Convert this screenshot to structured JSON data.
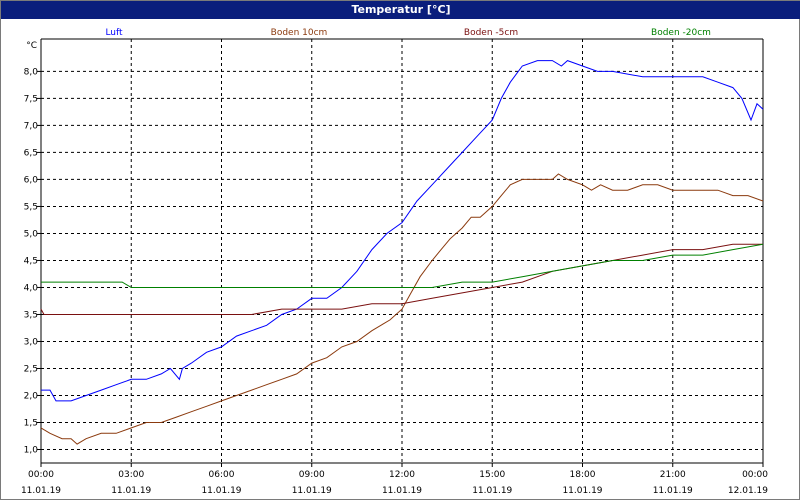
{
  "window": {
    "title": "Temperatur [°C]"
  },
  "chart_data": {
    "type": "line",
    "title": "Temperatur [°C]",
    "ylabel": "°C",
    "xlabel": "",
    "ylim": [
      0.75,
      8.6
    ],
    "xlim_hours": [
      0,
      24
    ],
    "grid": true,
    "legend_placement": "top",
    "y_ticks": [
      "1,0",
      "1,5",
      "2,0",
      "2,5",
      "3,0",
      "3,5",
      "4,0",
      "4,5",
      "5,0",
      "5,5",
      "6,0",
      "6,5",
      "7,0",
      "7,5",
      "8,0"
    ],
    "x_ticks": [
      {
        "time": "00:00",
        "date": "11.01.19"
      },
      {
        "time": "03:00",
        "date": "11.01.19"
      },
      {
        "time": "06:00",
        "date": "11.01.19"
      },
      {
        "time": "09:00",
        "date": "11.01.19"
      },
      {
        "time": "12:00",
        "date": "11.01.19"
      },
      {
        "time": "15:00",
        "date": "11.01.19"
      },
      {
        "time": "18:00",
        "date": "11.01.19"
      },
      {
        "time": "21:00",
        "date": "11.01.19"
      },
      {
        "time": "00:00",
        "date": "12.01.19"
      }
    ],
    "series": [
      {
        "name": "Luft",
        "color": "#0000ff",
        "x": [
          0,
          0.3,
          0.5,
          1,
          1.5,
          2,
          2.5,
          3,
          3.5,
          4,
          4.3,
          4.6,
          4.7,
          5,
          5.5,
          6,
          6.5,
          7,
          7.5,
          8,
          8.5,
          9,
          9.5,
          10,
          10.5,
          11,
          11.5,
          12,
          12.5,
          13,
          13.5,
          14,
          14.5,
          15,
          15.3,
          15.6,
          16,
          16.5,
          17,
          17.3,
          17.5,
          18,
          18.5,
          19,
          20,
          21,
          22,
          22.5,
          23,
          23.3,
          23.6,
          23.8,
          24
        ],
        "y": [
          2.1,
          2.1,
          1.9,
          1.9,
          2.0,
          2.1,
          2.2,
          2.3,
          2.3,
          2.4,
          2.5,
          2.3,
          2.5,
          2.6,
          2.8,
          2.9,
          3.1,
          3.2,
          3.3,
          3.5,
          3.6,
          3.8,
          3.8,
          4.0,
          4.3,
          4.7,
          5.0,
          5.2,
          5.6,
          5.9,
          6.2,
          6.5,
          6.8,
          7.1,
          7.5,
          7.8,
          8.1,
          8.2,
          8.2,
          8.1,
          8.2,
          8.1,
          8.0,
          8.0,
          7.9,
          7.9,
          7.9,
          7.8,
          7.7,
          7.5,
          7.1,
          7.4,
          7.3
        ]
      },
      {
        "name": "Boden 10cm",
        "color": "#8b3a0e",
        "x": [
          0,
          0.3,
          0.7,
          1,
          1.2,
          1.5,
          2,
          2.5,
          3,
          3.5,
          4,
          4.5,
          5,
          5.5,
          6,
          6.5,
          7,
          7.5,
          8,
          8.5,
          9,
          9.5,
          10,
          10.5,
          11,
          11.3,
          11.6,
          12,
          12.3,
          12.6,
          13,
          13.3,
          13.6,
          14,
          14.3,
          14.6,
          15,
          15.3,
          15.6,
          16,
          16.5,
          17,
          17.2,
          17.5,
          18,
          18.3,
          18.6,
          19,
          19.5,
          20,
          20.5,
          21,
          21.5,
          22,
          22.5,
          23,
          23.5,
          24
        ],
        "y": [
          1.4,
          1.3,
          1.2,
          1.2,
          1.1,
          1.2,
          1.3,
          1.3,
          1.4,
          1.5,
          1.5,
          1.6,
          1.7,
          1.8,
          1.9,
          2.0,
          2.1,
          2.2,
          2.3,
          2.4,
          2.6,
          2.7,
          2.9,
          3.0,
          3.2,
          3.3,
          3.4,
          3.6,
          3.9,
          4.2,
          4.5,
          4.7,
          4.9,
          5.1,
          5.3,
          5.3,
          5.5,
          5.7,
          5.9,
          6.0,
          6.0,
          6.0,
          6.1,
          6.0,
          5.9,
          5.8,
          5.9,
          5.8,
          5.8,
          5.9,
          5.9,
          5.8,
          5.8,
          5.8,
          5.8,
          5.7,
          5.7,
          5.6
        ]
      },
      {
        "name": "Boden -5cm",
        "color": "#7a1010",
        "x": [
          0,
          0.1,
          0.2,
          1,
          2,
          3,
          4,
          5,
          6,
          7,
          8,
          9,
          10,
          11,
          12,
          13,
          14,
          15,
          16,
          17,
          18,
          19,
          20,
          21,
          22,
          23,
          24
        ],
        "y": [
          3.6,
          3.5,
          3.5,
          3.5,
          3.5,
          3.5,
          3.5,
          3.5,
          3.5,
          3.5,
          3.6,
          3.6,
          3.6,
          3.7,
          3.7,
          3.8,
          3.9,
          4.0,
          4.1,
          4.3,
          4.4,
          4.5,
          4.6,
          4.7,
          4.7,
          4.8,
          4.8
        ]
      },
      {
        "name": "Boden -20cm",
        "color": "#008000",
        "x": [
          0,
          1,
          2,
          2.7,
          3,
          4,
          5,
          6,
          7,
          8,
          9,
          10,
          11,
          12,
          13,
          14,
          15,
          16,
          17,
          18,
          19,
          20,
          21,
          22,
          23,
          24
        ],
        "y": [
          4.1,
          4.1,
          4.1,
          4.1,
          4.0,
          4.0,
          4.0,
          4.0,
          4.0,
          4.0,
          4.0,
          4.0,
          4.0,
          4.0,
          4.0,
          4.1,
          4.1,
          4.2,
          4.3,
          4.4,
          4.5,
          4.5,
          4.6,
          4.6,
          4.7,
          4.8
        ]
      }
    ]
  }
}
